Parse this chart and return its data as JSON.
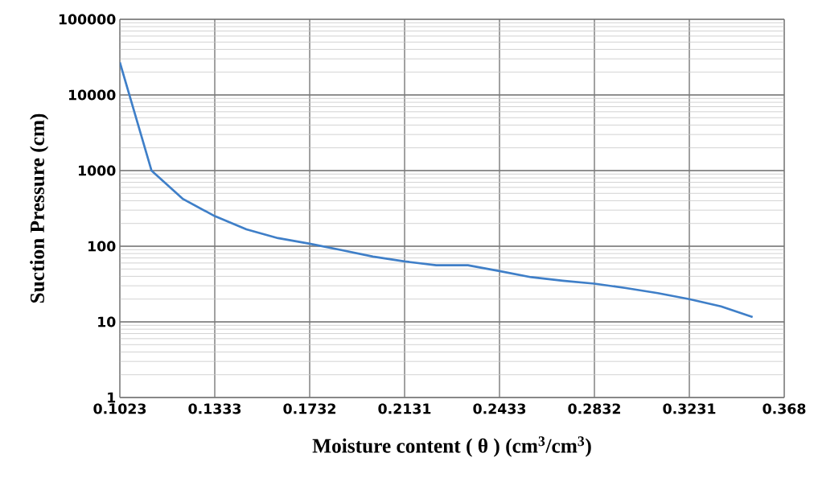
{
  "chart_data": {
    "type": "line",
    "xlabel": "Moisture content ( θ ) (cm$^{3}$/cm$^{3}$)",
    "ylabel": "Suction Pressure (cm)",
    "categories": [
      "0.1023",
      null,
      null,
      "0.1333",
      null,
      null,
      "0.1732",
      null,
      null,
      "0.2131",
      null,
      null,
      "0.2433",
      null,
      null,
      "0.2832",
      null,
      null,
      "0.3231",
      null,
      null,
      "0.368"
    ],
    "series": [
      {
        "color": "#3f7fc8",
        "values": [
          27000,
          1000,
          420,
          250,
          167,
          128,
          108,
          89,
          73,
          63,
          56,
          56,
          47,
          39,
          35,
          32,
          28,
          24,
          20,
          16,
          11.6,
          null
        ]
      }
    ],
    "log": "y",
    "ylim": [
      1,
      100000
    ],
    "yticks": [
      1,
      10,
      100,
      1000,
      10000,
      100000
    ],
    "grid": true,
    "marker": "none",
    "line_style": "solid"
  }
}
